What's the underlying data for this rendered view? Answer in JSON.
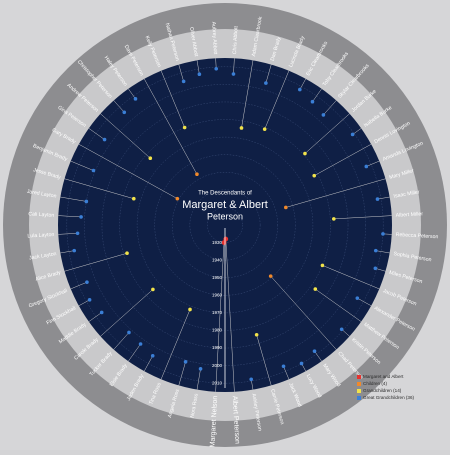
{
  "title": {
    "line1": "The Descendants of",
    "line2": "Margaret & Albert",
    "line3": "Peterson"
  },
  "legend": [
    {
      "label": "Margaret and Albert",
      "color": "#e8322e"
    },
    {
      "label": "Children (4)",
      "color": "#f0892b"
    },
    {
      "label": "Grandchildren (14)",
      "color": "#f2e34a"
    },
    {
      "label": "Great Grandchildren (36)",
      "color": "#3b7fd6"
    }
  ],
  "year_ticks": [
    1930,
    1940,
    1950,
    1960,
    1970,
    1980,
    1990,
    2000,
    2010
  ],
  "year_lim": [
    1920,
    2015
  ],
  "people": [
    {
      "name": "Albert Peterson",
      "born": 1928,
      "generation": 0
    },
    {
      "name": "Margaret Nelson",
      "born": 1930,
      "generation": 0
    },
    {
      "name": "Nora Ross",
      "born": 2003,
      "generation": 3
    },
    {
      "name": "Angela Ross",
      "born": 2001,
      "generation": 3
    },
    {
      "name": "Tina Ross",
      "born": 1972,
      "generation": 2
    },
    {
      "name": "Jaden Brady",
      "born": 2005,
      "generation": 3
    },
    {
      "name": "Elsie Brady",
      "born": 2003,
      "generation": 3
    },
    {
      "name": "Tucker Brady",
      "born": 2002,
      "generation": 3
    },
    {
      "name": "Carole Brady",
      "born": 1975,
      "generation": 2
    },
    {
      "name": "Maddie Brady",
      "born": 2006,
      "generation": 3
    },
    {
      "name": "Finn Stockhall",
      "born": 2008,
      "generation": 3
    },
    {
      "name": "Gregory Stockhall",
      "born": 2005,
      "generation": 3
    },
    {
      "name": "Alice Brady",
      "born": 1978,
      "generation": 2
    },
    {
      "name": "Jack Layton",
      "born": 2007,
      "generation": 3
    },
    {
      "name": "Lula Layton",
      "born": 2004,
      "generation": 3
    },
    {
      "name": "Cali Layton",
      "born": 2002,
      "generation": 3
    },
    {
      "name": "Jared Layton",
      "born": 2000,
      "generation": 3
    },
    {
      "name": "Jesse Brady",
      "born": 1974,
      "generation": 2
    },
    {
      "name": "Benjamin Brady",
      "born": 2001,
      "generation": 3
    },
    {
      "name": "Gary Brady",
      "born": 1951,
      "generation": 1
    },
    {
      "name": "Gina Peterson",
      "born": 2004,
      "generation": 3
    },
    {
      "name": "Andrew Peterson",
      "born": 1977,
      "generation": 2
    },
    {
      "name": "Christopher Peterson",
      "born": 2006,
      "generation": 3
    },
    {
      "name": "Haley Peterson",
      "born": 2008,
      "generation": 3
    },
    {
      "name": "Dave Peterson",
      "born": 1953,
      "generation": 1
    },
    {
      "name": "Kelly Peterson",
      "born": 1980,
      "generation": 2
    },
    {
      "name": "Nathan Peterson",
      "born": 2005,
      "generation": 3
    },
    {
      "name": "Oliver Abbott",
      "born": 2007,
      "generation": 3
    },
    {
      "name": "Aubrey Abbott",
      "born": 2009,
      "generation": 3
    },
    {
      "name": "Chris Abbott",
      "born": 2006,
      "generation": 3
    },
    {
      "name": "Adam Clearbrook",
      "born": 1976,
      "generation": 2
    },
    {
      "name": "Dan Brady",
      "born": 2004,
      "generation": 3
    },
    {
      "name": "Lucinda Brady",
      "born": 1979,
      "generation": 2
    },
    {
      "name": "Eric Clearbrooks",
      "born": 2008,
      "generation": 3
    },
    {
      "name": "Toby Clearbrooks",
      "born": 2006,
      "generation": 3
    },
    {
      "name": "Skylar Clearbrooks",
      "born": 2004,
      "generation": 3
    },
    {
      "name": "Jordan Burke",
      "born": 1981,
      "generation": 2
    },
    {
      "name": "Isabella Burke",
      "born": 2009,
      "generation": 3
    },
    {
      "name": "Dennis Lovington",
      "born": 1978,
      "generation": 2
    },
    {
      "name": "Amanda Lovington",
      "born": 2007,
      "generation": 3
    },
    {
      "name": "Mary Miller",
      "born": 1956,
      "generation": 1
    },
    {
      "name": "Isaac Miller",
      "born": 2008,
      "generation": 3
    },
    {
      "name": "Albert Miller",
      "born": 1982,
      "generation": 2
    },
    {
      "name": "Rebecca Peterson",
      "born": 2010,
      "generation": 3
    },
    {
      "name": "Sophia Peterson",
      "born": 2007,
      "generation": 3
    },
    {
      "name": "Miles Peterson",
      "born": 2009,
      "generation": 3
    },
    {
      "name": "Jacob Peterson",
      "born": 1980,
      "generation": 2
    },
    {
      "name": "Alexander Peterson",
      "born": 2006,
      "generation": 3
    },
    {
      "name": "Matthew Peterson",
      "born": 1983,
      "generation": 2
    },
    {
      "name": "Kristin Peterson",
      "born": 2009,
      "generation": 3
    },
    {
      "name": "Chad Peterson",
      "born": 1959,
      "generation": 1
    },
    {
      "name": "Mary Wood",
      "born": 2008,
      "generation": 3
    },
    {
      "name": "Lucy Wood",
      "born": 2010,
      "generation": 3
    },
    {
      "name": "Jack Wood",
      "born": 2007,
      "generation": 3
    },
    {
      "name": "Carrie Peterson",
      "born": 1985,
      "generation": 2
    },
    {
      "name": "Ashley Peterson",
      "born": 2009,
      "generation": 3
    }
  ]
}
